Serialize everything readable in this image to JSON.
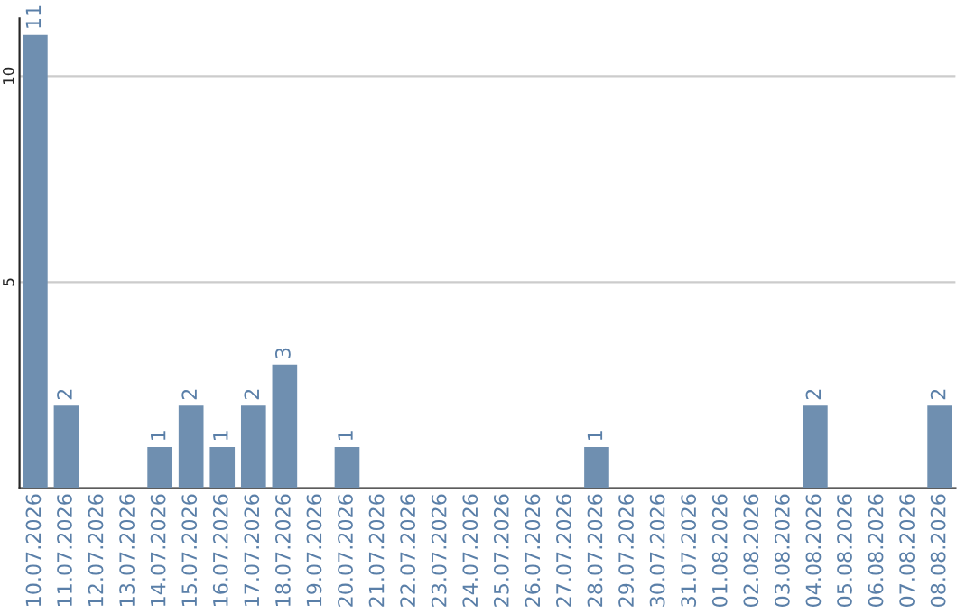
{
  "chart_data": {
    "type": "bar",
    "categories": [
      "10.07.2026",
      "11.07.2026",
      "12.07.2026",
      "13.07.2026",
      "14.07.2026",
      "15.07.2026",
      "16.07.2026",
      "17.07.2026",
      "18.07.2026",
      "19.07.2026",
      "20.07.2026",
      "21.07.2026",
      "22.07.2026",
      "23.07.2026",
      "24.07.2026",
      "25.07.2026",
      "26.07.2026",
      "27.07.2026",
      "28.07.2026",
      "29.07.2026",
      "30.07.2026",
      "31.07.2026",
      "01.08.2026",
      "02.08.2026",
      "03.08.2026",
      "04.08.2026",
      "05.08.2026",
      "06.08.2026",
      "07.08.2026",
      "08.08.2026"
    ],
    "values": [
      11,
      2,
      0,
      0,
      1,
      2,
      1,
      2,
      3,
      0,
      1,
      0,
      0,
      0,
      0,
      0,
      0,
      0,
      1,
      0,
      0,
      0,
      0,
      0,
      0,
      2,
      0,
      0,
      0,
      2
    ],
    "value_labels": [
      "11",
      "2",
      null,
      null,
      "1",
      "2",
      "1",
      "2",
      "3",
      null,
      "1",
      null,
      null,
      null,
      null,
      null,
      null,
      null,
      "1",
      null,
      null,
      null,
      null,
      null,
      null,
      "2",
      null,
      null,
      null,
      "2"
    ],
    "color": "#6f8fb0",
    "ylim": [
      0,
      11.4
    ],
    "yticks": [
      5,
      10
    ],
    "grid": "y"
  }
}
